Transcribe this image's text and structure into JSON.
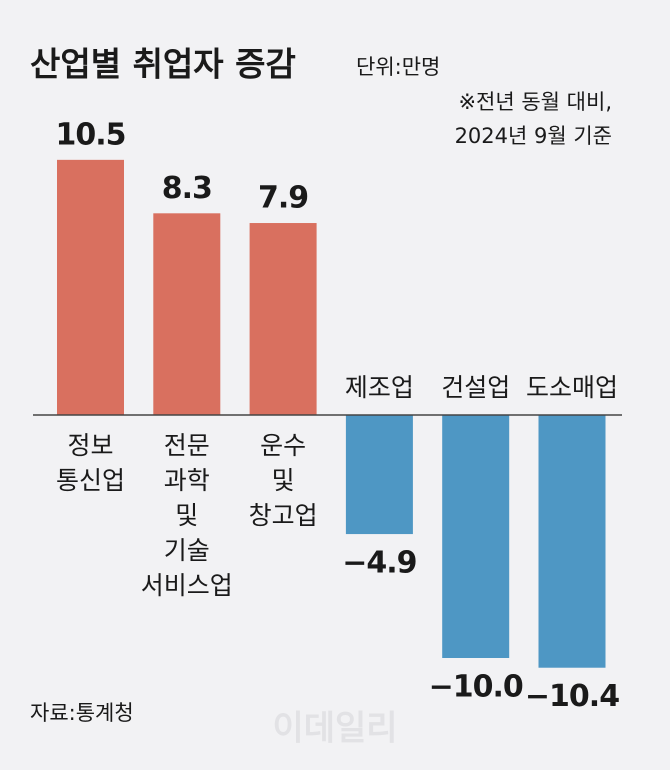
{
  "chart_data": {
    "type": "bar",
    "title": "산업별 취업자 증감",
    "unit": "단위:만명",
    "notes": [
      "※전년 동월 대비,",
      "2024년 9월 기준"
    ],
    "source": "자료:통계청",
    "watermark": "이데일리",
    "categories": [
      [
        "정보",
        "통신업"
      ],
      [
        "전문",
        "과학",
        "및",
        "기술",
        "서비스업"
      ],
      [
        "운수",
        "및",
        "창고업"
      ],
      [
        "제조업"
      ],
      [
        "건설업"
      ],
      [
        "도소매업"
      ]
    ],
    "values": [
      10.5,
      8.3,
      7.9,
      -4.9,
      -10.0,
      -10.4
    ],
    "value_labels": [
      "10.5",
      "8.3",
      "7.9",
      "−4.9",
      "−10.0",
      "−10.4"
    ],
    "colors": [
      "#d9705f",
      "#d9705f",
      "#d9705f",
      "#4e97c4",
      "#4e97c4",
      "#4e97c4"
    ]
  }
}
